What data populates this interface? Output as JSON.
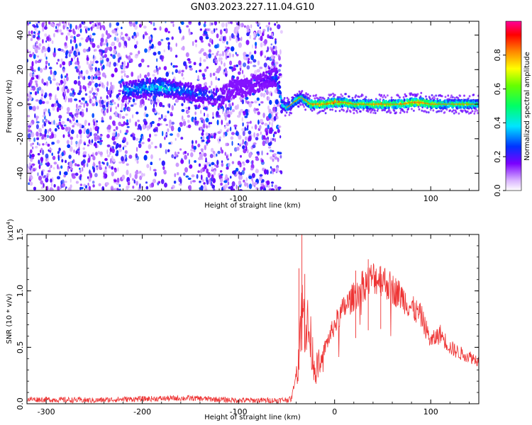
{
  "chart_data": [
    {
      "type": "heatmap",
      "title": "GN03.2023.227.11.04.G10",
      "xlabel": "Height of straight line (km)",
      "ylabel": "Frequency (Hz)",
      "xlim": [
        -320,
        150
      ],
      "ylim": [
        -50,
        48
      ],
      "x_ticks": [
        -300,
        -200,
        -100,
        0,
        100
      ],
      "y_ticks": [
        -40,
        -20,
        0,
        20,
        40
      ],
      "colorbar": {
        "label": "Normalized spectral amplitude",
        "range": [
          0,
          1
        ],
        "ticks": [
          0.0,
          0.2,
          0.4,
          0.6,
          0.8
        ],
        "tick_labels": [
          "0.0",
          "0.2",
          "0.4",
          "0.6",
          "0.8"
        ]
      },
      "noise_region": {
        "x": [
          -320,
          -55
        ],
        "freq": [
          -50,
          48
        ]
      },
      "ridge": {
        "x": [
          -220,
          -200,
          -185,
          -170,
          -160,
          -150,
          -140,
          -130,
          -120,
          -110,
          -100,
          -90,
          -80,
          -70,
          -60,
          -55,
          -50,
          -45,
          -40,
          -35,
          -30,
          -25,
          -20,
          -10,
          0,
          10,
          20,
          30,
          40,
          50,
          60,
          70,
          80,
          90,
          100,
          110,
          120,
          130,
          140,
          150
        ],
        "freq": [
          8,
          9,
          10,
          9,
          8,
          7,
          6,
          5,
          3,
          8,
          9,
          10,
          12,
          14,
          16,
          0,
          -2,
          0,
          2,
          4,
          2,
          0,
          0,
          0,
          1,
          1,
          0,
          0,
          0,
          0,
          0,
          0,
          1,
          1,
          0,
          0,
          0,
          0,
          0,
          0
        ],
        "amplitude": [
          0.35,
          0.4,
          0.45,
          0.38,
          0.35,
          0.32,
          0.3,
          0.28,
          0.25,
          0.15,
          0.15,
          0.15,
          0.18,
          0.2,
          0.3,
          0.45,
          0.5,
          0.55,
          0.6,
          0.55,
          0.7,
          0.75,
          0.85,
          0.8,
          0.9,
          0.8,
          0.7,
          0.75,
          0.8,
          0.85,
          0.7,
          0.8,
          0.9,
          0.9,
          0.75,
          0.7,
          0.65,
          0.7,
          0.65,
          0.6
        ]
      }
    },
    {
      "type": "line",
      "xlabel": "Height of straight line (km)",
      "ylabel": "SNR (10 * v/v)",
      "y_multiplier": "(x10",
      "y_multiplier_exp": "4",
      "y_multiplier_close": ")",
      "xlim": [
        -320,
        150
      ],
      "ylim": [
        0,
        1.5
      ],
      "x_ticks": [
        -300,
        -200,
        -100,
        0,
        100
      ],
      "y_ticks": [
        0.0,
        0.5,
        1.0,
        1.5
      ],
      "y_tick_labels": [
        "0.0",
        "0.5",
        "1.0",
        "1.5"
      ],
      "color": "#ee3333",
      "envelope": {
        "x": [
          -320,
          -250,
          -220,
          -150,
          -100,
          -60,
          -45,
          -38,
          -35,
          -30,
          -25,
          -20,
          -15,
          -10,
          0,
          10,
          20,
          30,
          40,
          50,
          60,
          70,
          80,
          90,
          100,
          110,
          120,
          130,
          140,
          150
        ],
        "y": [
          0.04,
          0.03,
          0.04,
          0.05,
          0.03,
          0.03,
          0.04,
          0.35,
          0.8,
          0.75,
          0.55,
          0.3,
          0.35,
          0.5,
          0.7,
          0.85,
          0.95,
          1.05,
          1.12,
          1.1,
          1.02,
          0.95,
          0.85,
          0.78,
          0.55,
          0.62,
          0.5,
          0.45,
          0.42,
          0.38
        ]
      },
      "spikes": [
        {
          "x": -34,
          "y": 1.55
        },
        {
          "x": -37,
          "y": 1.2
        },
        {
          "x": -31,
          "y": 1.15
        },
        {
          "x": 35,
          "y": 1.28
        },
        {
          "x": 48,
          "y": 1.22
        },
        {
          "x": 22,
          "y": 1.18
        }
      ]
    }
  ]
}
